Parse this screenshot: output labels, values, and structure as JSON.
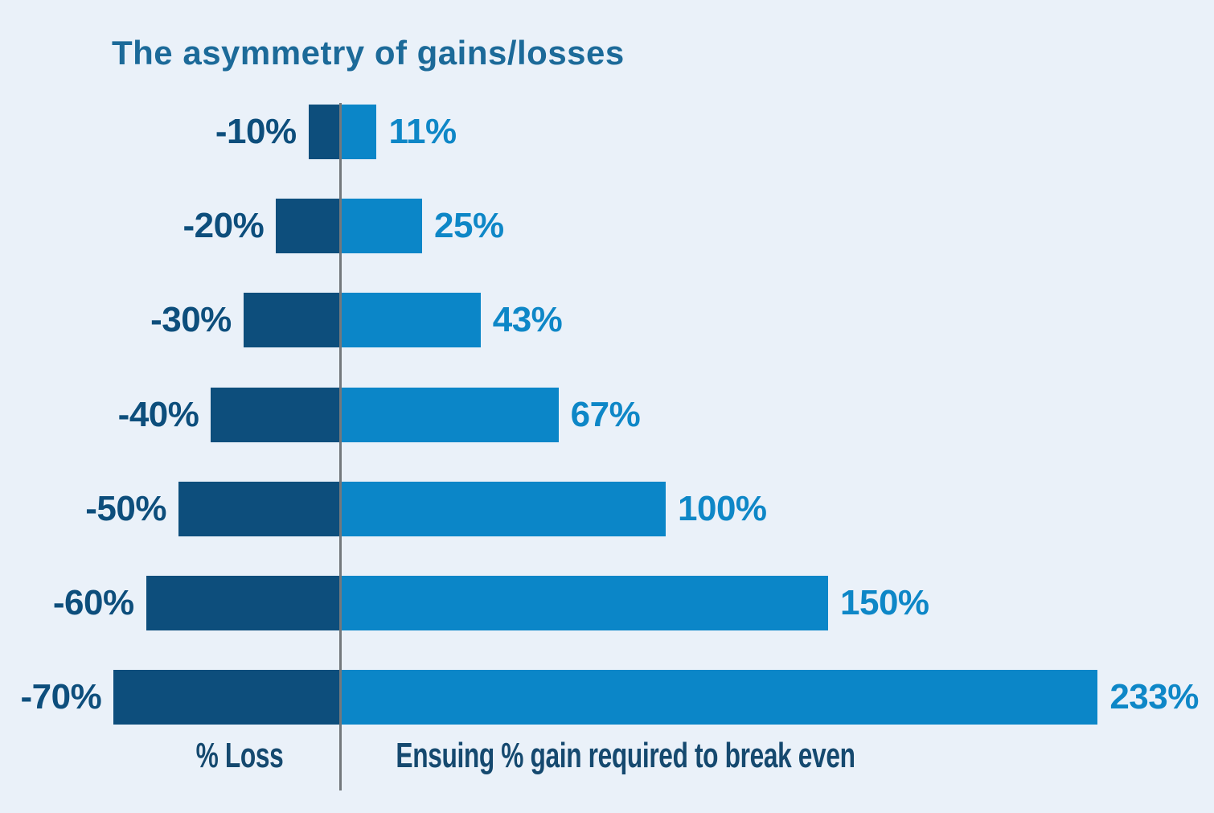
{
  "chart_data": {
    "type": "bar",
    "orientation": "horizontal-diverging",
    "title": "The asymmetry of gains/losses",
    "xlabel_left": "% Loss",
    "xlabel_right": "Ensuing % gain required to break even",
    "categories": [
      "-10%",
      "-20%",
      "-30%",
      "-40%",
      "-50%",
      "-60%",
      "-70%"
    ],
    "series": [
      {
        "name": "% Loss",
        "values": [
          -10,
          -20,
          -30,
          -40,
          -50,
          -60,
          -70
        ]
      },
      {
        "name": "Ensuing % gain required to break even",
        "values": [
          11,
          25,
          43,
          67,
          100,
          150,
          233
        ]
      }
    ],
    "loss_labels": [
      "-10%",
      "-20%",
      "-30%",
      "-40%",
      "-50%",
      "-60%",
      "-70%"
    ],
    "gain_labels": [
      "11%",
      "25%",
      "43%",
      "67%",
      "100%",
      "150%",
      "233%"
    ],
    "grid": false,
    "legend_position": "none",
    "xlim_pct": [
      -70,
      233
    ],
    "colors": {
      "background": "#eaf1f9",
      "loss_bar": "#0d4e7c",
      "gain_bar": "#0b86c8",
      "loss_label": "#0d4e7c",
      "gain_label": "#0e87c7",
      "title": "#1c6a99",
      "axis_label": "#15496f",
      "axis_line": "#73787c"
    }
  }
}
